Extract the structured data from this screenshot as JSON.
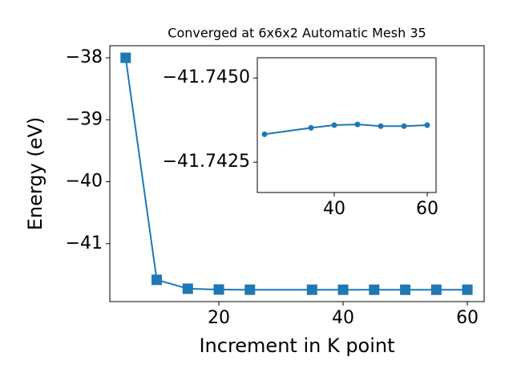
{
  "chart_data": [
    {
      "type": "line",
      "title": "Converged at 6x6x2 Automatic Mesh 35",
      "x_label": "Increment in K point",
      "y_label": "Energy (eV)",
      "x": [
        5,
        10,
        15,
        20,
        25,
        35,
        40,
        45,
        50,
        55,
        60
      ],
      "series": [
        {
          "color": "#1f77b4",
          "marker": "square",
          "values": [
            -38.0,
            -41.584,
            -41.727,
            -41.74,
            -41.7433,
            -41.7435,
            -41.7436,
            -41.7436,
            -41.7436,
            -41.7436,
            -41.7436
          ]
        }
      ],
      "xlim": [
        2.45,
        62.7
      ],
      "ylim": [
        -41.935,
        -37.805
      ],
      "xticks": [
        20,
        40,
        60
      ],
      "yticks": [
        {
          "value": -41,
          "label": "−41"
        },
        {
          "value": -40,
          "label": "−40"
        },
        {
          "value": -39,
          "label": "−39"
        },
        {
          "value": -38,
          "label": "−38"
        }
      ]
    },
    {
      "type": "line",
      "x": [
        25,
        35,
        40,
        45,
        50,
        55,
        60
      ],
      "series": [
        {
          "color": "#1f77b4",
          "marker": "circle",
          "values": [
            -41.74333,
            -41.74352,
            -41.7436,
            -41.74362,
            -41.74357,
            -41.74357,
            -41.7436
          ]
        }
      ],
      "xlim": [
        23.45,
        61.9
      ],
      "ylim": [
        -41.7416,
        -41.7456
      ],
      "xticks": [
        40,
        60
      ],
      "yticks": [
        {
          "value": -41.745,
          "label": "−41.7450"
        },
        {
          "value": -41.7425,
          "label": "−41.7425"
        }
      ]
    }
  ]
}
